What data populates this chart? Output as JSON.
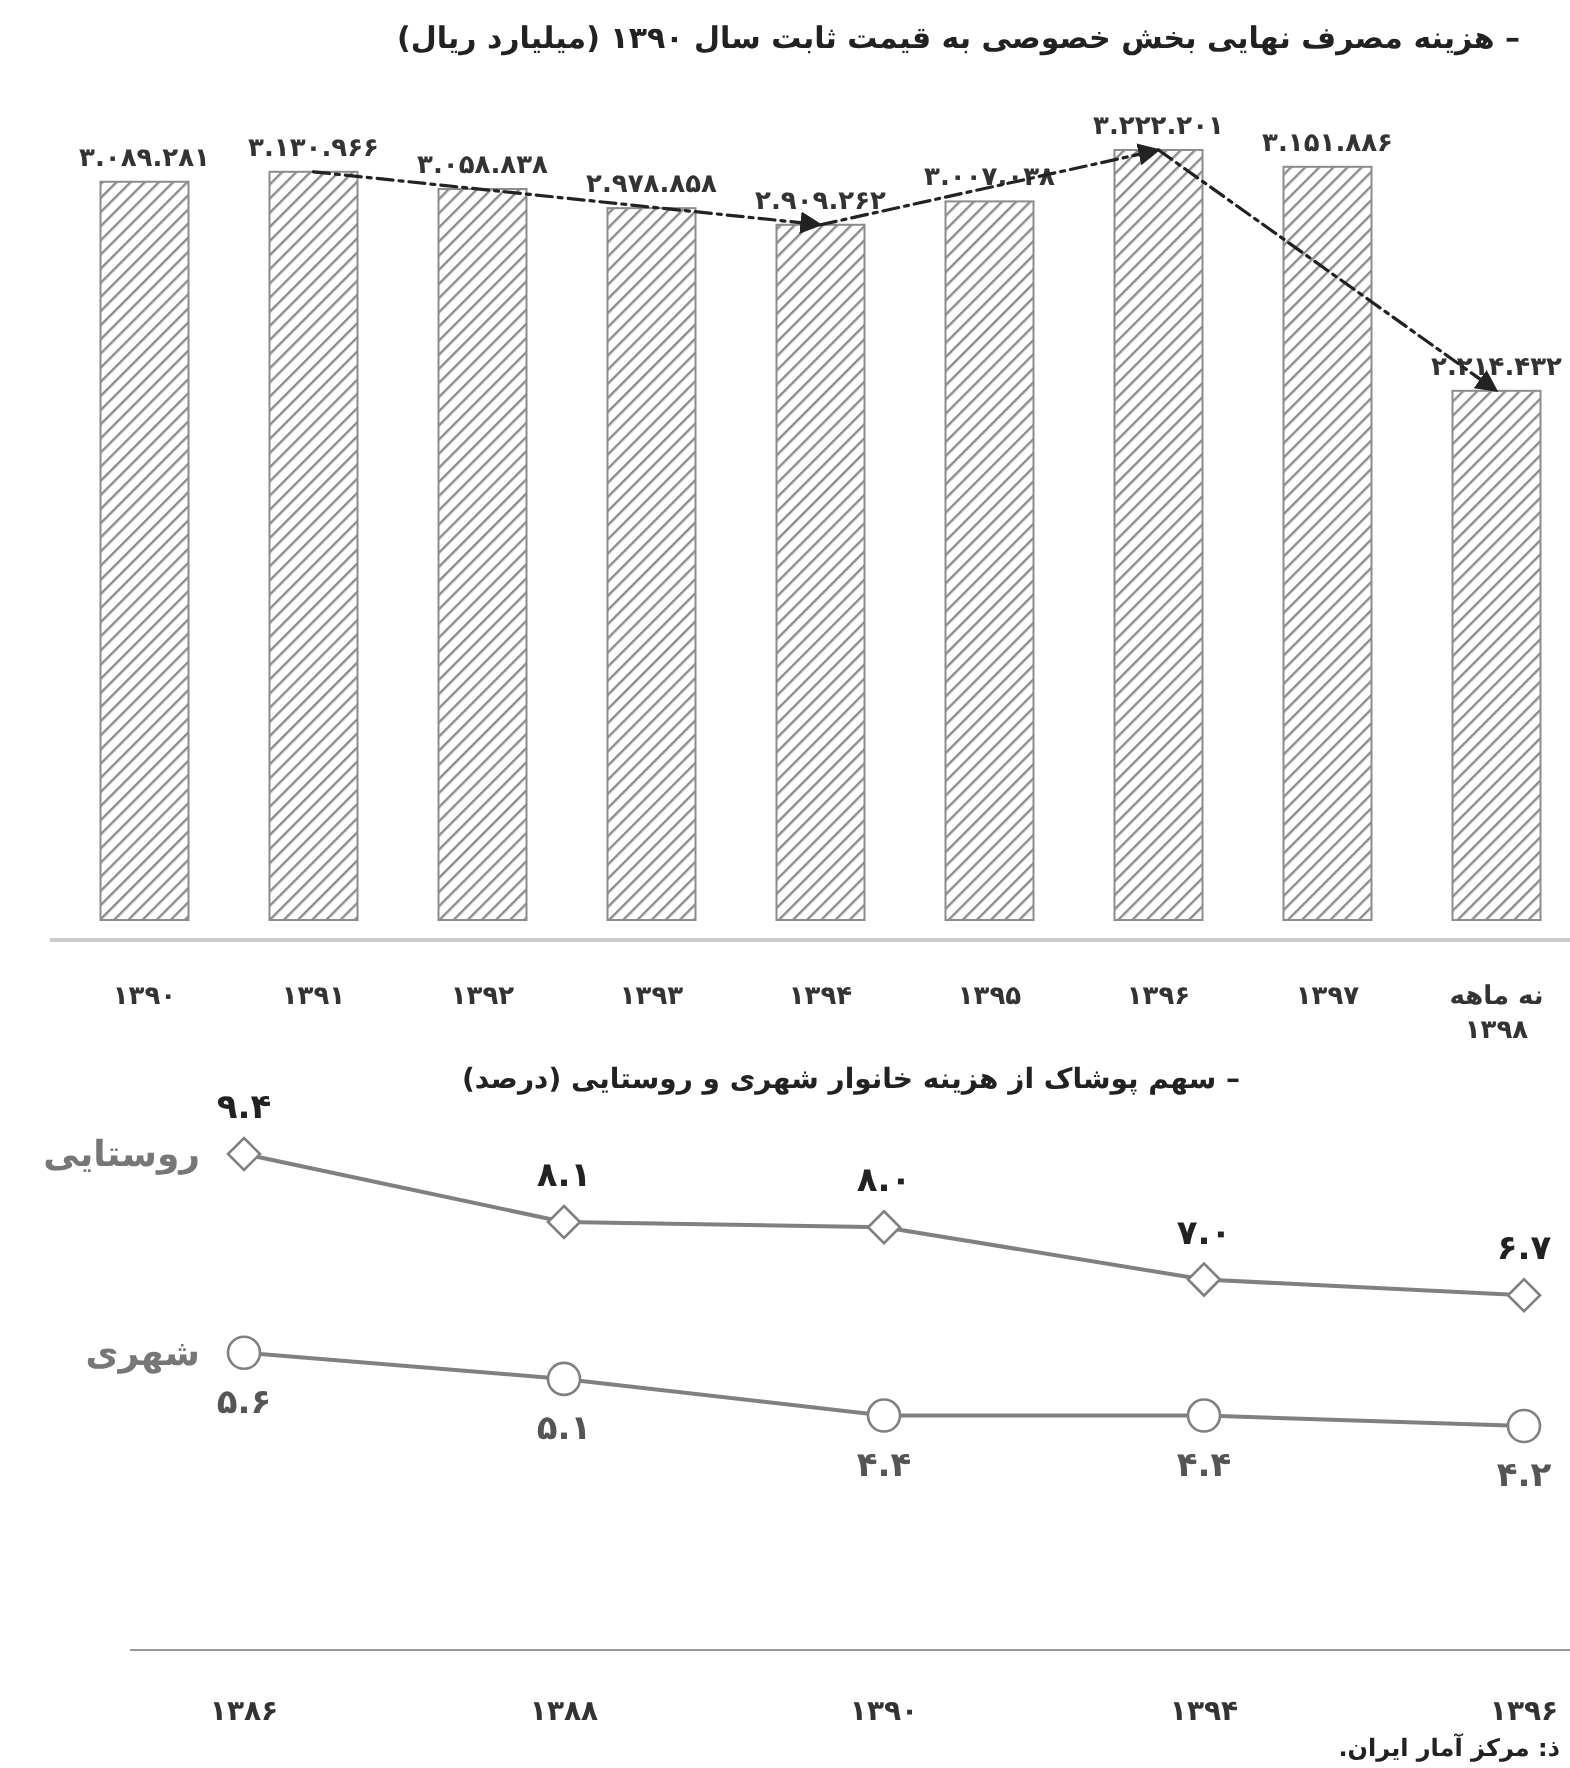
{
  "chart_data": [
    {
      "type": "bar",
      "title": "– هزینه مصرف نهایی بخش خصوصی به قیمت ثابت سال ۱۳۹۰ (میلیارد ریال)",
      "categories": [
        "۱۳۹۰",
        "۱۳۹۱",
        "۱۳۹۲",
        "۱۳۹۳",
        "۱۳۹۴",
        "۱۳۹۵",
        "۱۳۹۶",
        "۱۳۹۷",
        "نه ماهه\n۱۳۹۸"
      ],
      "series": [
        {
          "type": "bar",
          "color": "#8c8c8c",
          "values": [
            3089281,
            3130966,
            3058838,
            2978858,
            2909262,
            3007038,
            3222201,
            3151886,
            2214432
          ],
          "value_labels": [
            "۳.۰۸۹.۲۸۱",
            "۳.۱۳۰.۹۶۶",
            "۳.۰۵۸.۸۳۸",
            "۲.۹۷۸.۸۵۸",
            "۲.۹۰۹.۲۶۲",
            "۳.۰۰۷.۰۳۸",
            "۳.۲۲۲.۲۰۱",
            "۳.۱۵۱.۸۸۶",
            "۲.۲۱۴.۴۳۲"
          ]
        },
        {
          "type": "line",
          "color": "#222222",
          "line_style": "dashed",
          "values": [
            null,
            3130966,
            null,
            null,
            2909262,
            null,
            3222201,
            null,
            2214432
          ]
        }
      ]
    },
    {
      "type": "line",
      "title": "– سهم پوشاک از هزینه خانوار شهری و روستایی (درصد)",
      "categories": [
        "۱۳۸۶",
        "۱۳۸۸",
        "۱۳۹۰",
        "۱۳۹۴",
        "۱۳۹۶"
      ],
      "series": [
        {
          "name": "روستایی",
          "color": "#808080",
          "marker": "diamond",
          "values": [
            9.4,
            8.1,
            8.0,
            7.0,
            6.7
          ],
          "value_labels": [
            "۹.۴",
            "۸.۱",
            "۸.۰",
            "۷.۰",
            "۶.۷"
          ]
        },
        {
          "name": "شهری",
          "color": "#808080",
          "marker": "circle",
          "values": [
            5.6,
            5.1,
            4.4,
            4.4,
            4.2
          ],
          "value_labels": [
            "۵.۶",
            "۵.۱",
            "۴.۴",
            "۴.۴",
            "۴.۲"
          ]
        }
      ],
      "line_style": "solid",
      "annotations": [
        "ذ: مرکز آمار ایران."
      ]
    }
  ]
}
